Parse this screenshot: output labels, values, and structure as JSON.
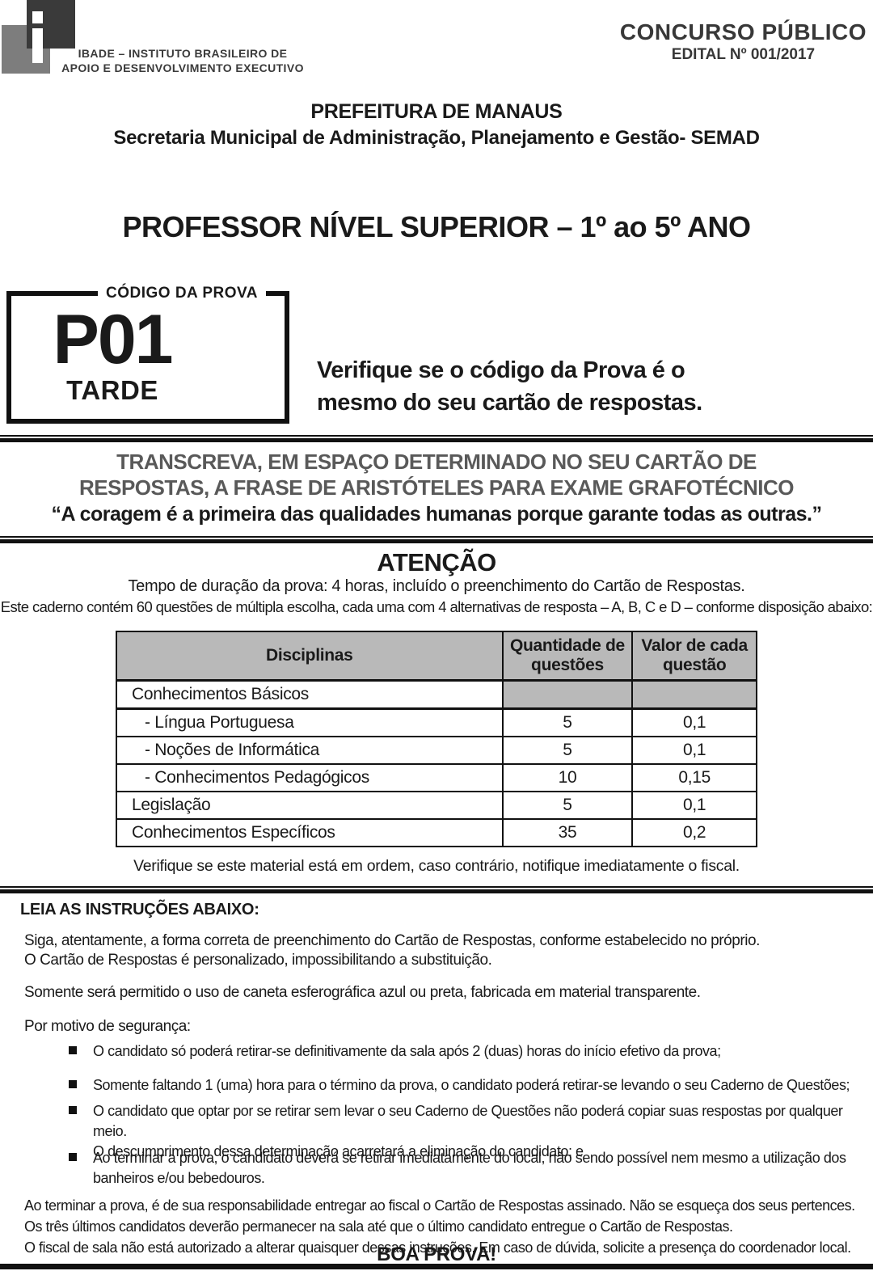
{
  "colors": {
    "accent_dark": "#3a3a3a",
    "logo_gray": "#7d7d7d",
    "heading_gray": "#595959",
    "table_header_bg": "#b9b9b9"
  },
  "header": {
    "logo_line1": "IBADE – INSTITUTO BRASILEIRO DE",
    "logo_line2": "APOIO E DESENVOLVIMENTO EXECUTIVO",
    "contest_title": "CONCURSO PÚBLICO",
    "edital": "EDITAL Nº 001/2017",
    "org_name": "PREFEITURA DE MANAUS",
    "org_secretariat": "Secretaria Municipal de Administração, Planejamento e Gestão- SEMAD"
  },
  "exam": {
    "title": "PROFESSOR NÍVEL SUPERIOR – 1º ao 5º ANO",
    "code_label": "CÓDIGO DA PROVA",
    "code": "P01",
    "period": "TARDE",
    "code_note": "Verifique se o código da Prova é o\nmesmo do seu cartão de respostas."
  },
  "transcription": {
    "heading": "TRANSCREVA, EM ESPAÇO DETERMINADO NO SEU CARTÃO DE\nRESPOSTAS, A FRASE DE ARISTÓTELES PARA EXAME GRAFOTÉCNICO",
    "quote": "“A coragem é a primeira das qualidades humanas porque garante todas as outras.”"
  },
  "attention": {
    "title": "ATENÇÃO",
    "duration": "Tempo de duração da prova: 4 horas, incluído o preenchimento do Cartão de Respostas.",
    "booklet": "Este caderno contém 60 questões de múltipla escolha, cada uma com 4 alternativas de resposta – A, B, C e D – conforme disposição abaixo:",
    "table": {
      "headers": [
        "Disciplinas",
        "Quantidade de questões",
        "Valor de cada questão"
      ],
      "rows": [
        {
          "discipline": "Conhecimentos Básicos",
          "qty": "",
          "value": ""
        },
        {
          "discipline": "- Língua Portuguesa",
          "qty": "5",
          "value": "0,1"
        },
        {
          "discipline": "- Noções de Informática",
          "qty": "5",
          "value": "0,1"
        },
        {
          "discipline": "- Conhecimentos Pedagógicos",
          "qty": "10",
          "value": "0,15"
        },
        {
          "discipline": "Legislação",
          "qty": "5",
          "value": "0,1"
        },
        {
          "discipline": "Conhecimentos Específicos",
          "qty": "35",
          "value": "0,2"
        }
      ]
    },
    "material_note": "Verifique se este material está em ordem, caso contrário, notifique imediatamente o fiscal."
  },
  "instructions": {
    "title": "LEIA AS INSTRUÇÕES ABAIXO:",
    "p1": "Siga, atentamente, a forma correta de preenchimento do Cartão de Respostas, conforme estabelecido no próprio.\nO Cartão de Respostas é personalizado, impossibilitando a substituição.",
    "p2": "Somente será permitido o uso de caneta esferográfica azul ou preta, fabricada em material transparente.",
    "p3": "Por motivo de segurança:",
    "bullets": [
      "O candidato só poderá retirar-se definitivamente da sala após 2 (duas) horas do início efetivo da prova;",
      "Somente faltando 1 (uma) hora para o término da prova, o candidato poderá retirar-se levando o seu Caderno de Questões;",
      "O candidato que optar por se retirar sem levar o seu Caderno de Questões não poderá copiar suas respostas por qualquer meio.\nO descumprimento dessa determinação acarretará a eliminação do candidato; e",
      "Ao terminar a prova, o candidato deverá se retirar imediatamente do local, não sendo possível nem mesmo a utilização dos\nbanheiros e/ou bebedouros."
    ],
    "closing": "Ao terminar a prova, é de sua responsabilidade entregar ao fiscal o Cartão de Respostas assinado. Não se esqueça dos seus pertences.\nOs três últimos candidatos deverão permanecer na sala até que o último candidato entregue o Cartão de Respostas.\nO fiscal de sala não está autorizado a alterar quaisquer dessas instruções. Em caso de dúvida, solicite a presença do coordenador local.",
    "good_luck": "BOA PROVA!"
  }
}
